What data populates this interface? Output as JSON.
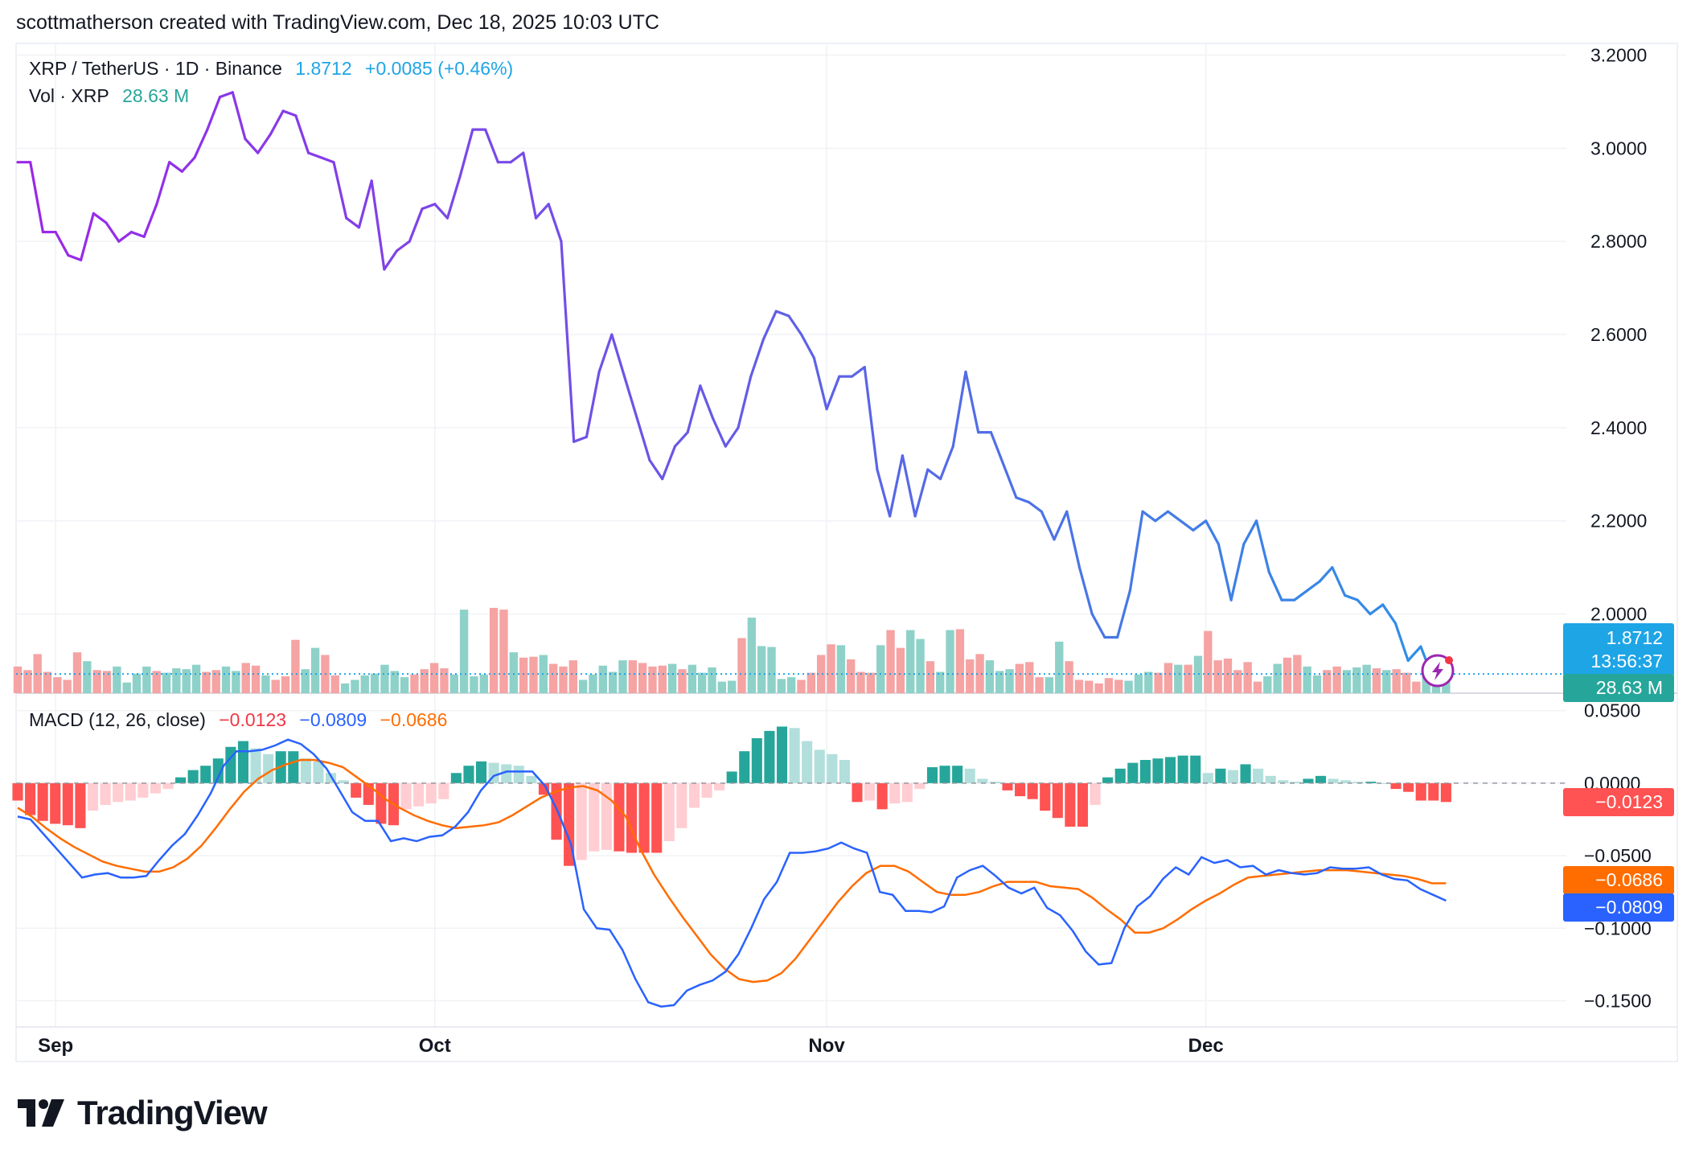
{
  "header": {
    "text": "scottmatherson created with TradingView.com, Dec 18, 2025 10:03 UTC"
  },
  "legend": {
    "symbol": "XRP / TetherUS · 1D · Binance",
    "price": "1.8712",
    "change": "+0.0085 (+0.46%)",
    "vol_label": "Vol · XRP",
    "vol_value": "28.63 M",
    "macd_label": "MACD (12, 26, close)",
    "macd_hist": "−0.0123",
    "macd_line": "−0.0809",
    "macd_signal": "−0.0686"
  },
  "badges": {
    "price": "1.8712",
    "countdown": "13:56:37",
    "volume": "28.63 M",
    "hist": "−0.0123",
    "signal": "−0.0686",
    "macd": "−0.0809"
  },
  "footer": {
    "logo_text": "TradingView",
    "logo_icon": "tradingview-logo-icon"
  },
  "colors": {
    "price_purple": "#9C27E8",
    "price_blue": "#2E8FE6",
    "up_vol": "#8ED1C9",
    "down_vol": "#F5A3A3",
    "macd_blue": "#2962FF",
    "signal_orange": "#FF6D00",
    "hist_up_strong": "#26A69A",
    "hist_up_weak": "#B2DFDB",
    "hist_down_strong": "#FF5252",
    "hist_down_weak": "#FFCDD2",
    "price_badge": "#1EA5E6",
    "vol_badge": "#26A69A"
  },
  "chart_data": {
    "type": "line",
    "x_ticks": [
      "Sep",
      "Oct",
      "Nov",
      "Dec"
    ],
    "x_tick_days": [
      3,
      33,
      64,
      94
    ],
    "price": {
      "y_ticks": [
        "3.2000",
        "3.0000",
        "2.8000",
        "2.6000",
        "2.4000",
        "2.2000",
        "2.0000"
      ],
      "ylim": [
        1.83,
        3.225
      ],
      "current": 1.8712,
      "close": [
        2.97,
        2.97,
        2.82,
        2.82,
        2.77,
        2.76,
        2.86,
        2.84,
        2.8,
        2.82,
        2.81,
        2.88,
        2.97,
        2.95,
        2.98,
        3.04,
        3.11,
        3.12,
        3.02,
        2.99,
        3.03,
        3.08,
        3.07,
        2.99,
        2.98,
        2.97,
        2.85,
        2.83,
        2.93,
        2.74,
        2.78,
        2.8,
        2.87,
        2.88,
        2.85,
        2.94,
        3.04,
        3.04,
        2.97,
        2.97,
        2.99,
        2.85,
        2.88,
        2.8,
        2.37,
        2.38,
        2.52,
        2.6,
        2.51,
        2.42,
        2.33,
        2.29,
        2.36,
        2.39,
        2.49,
        2.42,
        2.36,
        2.4,
        2.51,
        2.59,
        2.65,
        2.64,
        2.6,
        2.55,
        2.44,
        2.51,
        2.51,
        2.53,
        2.31,
        2.21,
        2.34,
        2.21,
        2.31,
        2.29,
        2.36,
        2.52,
        2.39,
        2.39,
        2.32,
        2.25,
        2.24,
        2.22,
        2.16,
        2.22,
        2.1,
        2.0,
        1.95,
        1.95,
        2.05,
        2.22,
        2.2,
        2.22,
        2.2,
        2.18,
        2.2,
        2.15,
        2.03,
        2.15,
        2.2,
        2.09,
        2.03,
        2.03,
        2.05,
        2.07,
        2.1,
        2.04,
        2.03,
        2.0,
        2.02,
        1.98,
        1.9,
        1.93,
        1.86,
        1.8712
      ]
    },
    "volume": {
      "ylim": [
        0,
        190
      ],
      "values": [
        30,
        26,
        44,
        24,
        18,
        15,
        46,
        36,
        26,
        25,
        30,
        12,
        22,
        30,
        25,
        23,
        28,
        27,
        32,
        24,
        26,
        30,
        25,
        34,
        31,
        20,
        15,
        19,
        60,
        27,
        51,
        43,
        20,
        11,
        15,
        20,
        22,
        32,
        25,
        18,
        21,
        27,
        34,
        28,
        21,
        94,
        19,
        21,
        96,
        94,
        46,
        40,
        41,
        43,
        33,
        30,
        37,
        15,
        21,
        31,
        24,
        37,
        37,
        34,
        30,
        31,
        33,
        27,
        32,
        23,
        29,
        13,
        14,
        62,
        85,
        53,
        52,
        16,
        18,
        15,
        23,
        43,
        55,
        54,
        38,
        24,
        23,
        54,
        71,
        51,
        71,
        61,
        36,
        24,
        71,
        72,
        38,
        44,
        37,
        25,
        27,
        33,
        35,
        18,
        18,
        58,
        36,
        15,
        14,
        11,
        17,
        15,
        14,
        21,
        24,
        23,
        34,
        32,
        32,
        42,
        70,
        37,
        39,
        26,
        35,
        13,
        19,
        33,
        40,
        43,
        30,
        20,
        26,
        30,
        26,
        29,
        32,
        28,
        26,
        27,
        23,
        13,
        29,
        30,
        33
      ],
      "up": [
        0,
        0,
        0,
        0,
        0,
        0,
        0,
        1,
        0,
        0,
        1,
        1,
        1,
        1,
        0,
        1,
        1,
        1,
        1,
        0,
        0,
        1,
        1,
        0,
        0,
        1,
        0,
        0,
        0,
        1,
        1,
        0,
        0,
        1,
        1,
        1,
        1,
        1,
        1,
        1,
        0,
        0,
        0,
        0,
        1,
        1,
        1,
        1,
        0,
        0,
        1,
        0,
        0,
        1,
        0,
        0,
        0,
        1,
        1,
        1,
        1,
        1,
        0,
        0,
        0,
        0,
        1,
        0,
        1,
        1,
        1,
        1,
        1,
        0,
        1,
        1,
        1,
        1,
        1,
        0,
        0,
        0,
        0,
        1,
        0,
        0,
        0,
        1,
        0,
        0,
        1,
        1,
        0,
        1,
        1,
        0,
        0,
        0,
        1,
        1,
        1,
        0,
        0,
        0,
        1,
        1,
        0,
        0,
        0,
        0,
        0,
        0,
        1,
        1,
        1,
        0,
        0,
        1,
        0,
        1,
        0,
        0,
        0,
        0,
        0,
        0,
        1,
        1,
        0,
        0,
        1,
        1,
        0,
        0,
        1,
        1,
        1,
        0,
        1,
        0,
        0,
        0,
        1,
        1,
        1,
        1,
        0
      ]
    },
    "macd": {
      "y_ticks": [
        "0.0500",
        "0.0000",
        "−0.0500",
        "−0.1000",
        "−0.1500"
      ],
      "ylim": [
        -0.168,
        0.062
      ],
      "macd": [
        -0.023,
        -0.025,
        -0.035,
        -0.045,
        -0.055,
        -0.065,
        -0.063,
        -0.062,
        -0.065,
        -0.065,
        -0.064,
        -0.053,
        -0.043,
        -0.035,
        -0.022,
        -0.007,
        0.012,
        0.022,
        0.022,
        0.023,
        0.026,
        0.03,
        0.027,
        0.02,
        0.01,
        -0.005,
        -0.02,
        -0.026,
        -0.026,
        -0.04,
        -0.038,
        -0.04,
        -0.037,
        -0.036,
        -0.03,
        -0.02,
        -0.005,
        0.005,
        0.008,
        0.008,
        0.008,
        -0.002,
        -0.02,
        -0.042,
        -0.087,
        -0.1,
        -0.101,
        -0.115,
        -0.135,
        -0.151,
        -0.154,
        -0.153,
        -0.143,
        -0.139,
        -0.136,
        -0.13,
        -0.118,
        -0.1,
        -0.08,
        -0.068,
        -0.048,
        -0.048,
        -0.047,
        -0.045,
        -0.041,
        -0.045,
        -0.048,
        -0.075,
        -0.077,
        -0.088,
        -0.088,
        -0.089,
        -0.085,
        -0.065,
        -0.06,
        -0.057,
        -0.064,
        -0.072,
        -0.076,
        -0.072,
        -0.086,
        -0.091,
        -0.102,
        -0.116,
        -0.125,
        -0.124,
        -0.1,
        -0.085,
        -0.078,
        -0.066,
        -0.058,
        -0.063,
        -0.051,
        -0.055,
        -0.053,
        -0.058,
        -0.057,
        -0.063,
        -0.06,
        -0.062,
        -0.063,
        -0.062,
        -0.058,
        -0.059,
        -0.059,
        -0.058,
        -0.063,
        -0.066,
        -0.067,
        -0.073,
        -0.077,
        -0.081
      ],
      "signal": [
        -0.017,
        -0.023,
        -0.031,
        -0.038,
        -0.044,
        -0.049,
        -0.054,
        -0.057,
        -0.059,
        -0.061,
        -0.061,
        -0.058,
        -0.052,
        -0.043,
        -0.031,
        -0.018,
        -0.006,
        0.003,
        0.009,
        0.013,
        0.016,
        0.016,
        0.014,
        0.011,
        0.004,
        -0.003,
        -0.011,
        -0.017,
        -0.022,
        -0.026,
        -0.029,
        -0.031,
        -0.03,
        -0.029,
        -0.027,
        -0.022,
        -0.016,
        -0.01,
        -0.006,
        -0.003,
        -0.002,
        -0.005,
        -0.012,
        -0.023,
        -0.045,
        -0.063,
        -0.078,
        -0.092,
        -0.105,
        -0.118,
        -0.128,
        -0.135,
        -0.137,
        -0.136,
        -0.131,
        -0.121,
        -0.108,
        -0.095,
        -0.082,
        -0.071,
        -0.062,
        -0.057,
        -0.057,
        -0.061,
        -0.068,
        -0.075,
        -0.077,
        -0.077,
        -0.075,
        -0.071,
        -0.068,
        -0.068,
        -0.068,
        -0.071,
        -0.072,
        -0.073,
        -0.079,
        -0.087,
        -0.094,
        -0.103,
        -0.103,
        -0.1,
        -0.094,
        -0.087,
        -0.081,
        -0.076,
        -0.07,
        -0.065,
        -0.064,
        -0.063,
        -0.062,
        -0.061,
        -0.06,
        -0.06,
        -0.06,
        -0.061,
        -0.062,
        -0.063,
        -0.064,
        -0.066,
        -0.069,
        -0.069
      ],
      "hist": [
        -0.012,
        -0.022,
        -0.026,
        -0.028,
        -0.029,
        -0.031,
        -0.019,
        -0.015,
        -0.013,
        -0.012,
        -0.01,
        -0.007,
        -0.004,
        0.004,
        0.009,
        0.012,
        0.017,
        0.025,
        0.029,
        0.024,
        0.02,
        0.022,
        0.022,
        0.017,
        0.015,
        0.007,
        0.002,
        -0.01,
        -0.015,
        -0.028,
        -0.029,
        -0.018,
        -0.016,
        -0.014,
        -0.011,
        0.007,
        0.012,
        0.015,
        0.014,
        0.013,
        0.012,
        0.005,
        -0.008,
        -0.039,
        -0.057,
        -0.053,
        -0.047,
        -0.046,
        -0.047,
        -0.048,
        -0.048,
        -0.048,
        -0.04,
        -0.031,
        -0.017,
        -0.01,
        -0.005,
        0.008,
        0.022,
        0.031,
        0.036,
        0.039,
        0.038,
        0.029,
        0.023,
        0.02,
        0.016,
        -0.013,
        -0.012,
        -0.018,
        -0.014,
        -0.013,
        -0.004,
        0.011,
        0.012,
        0.012,
        0.01,
        0.003,
        0.001,
        -0.005,
        -0.009,
        -0.011,
        -0.019,
        -0.024,
        -0.03,
        -0.03,
        -0.015,
        0.004,
        0.01,
        0.014,
        0.016,
        0.017,
        0.018,
        0.019,
        0.019,
        0.007,
        0.01,
        0.009,
        0.013,
        0.01,
        0.005,
        0.002,
        0.001,
        0.003,
        0.005,
        0.003,
        0.002,
        0.001,
        0.001,
        0.0,
        -0.004,
        -0.006,
        -0.012,
        -0.012,
        -0.013
      ]
    }
  }
}
